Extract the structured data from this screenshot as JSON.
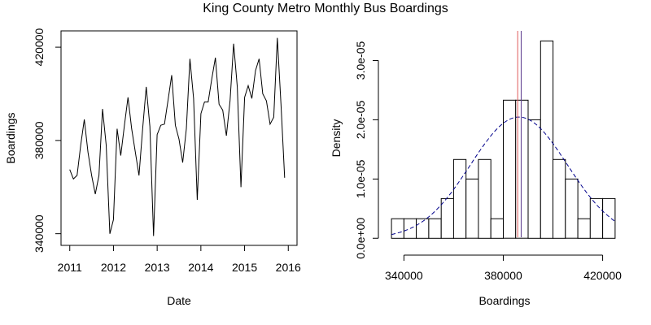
{
  "figure_title": "King County Metro Monthly Bus Boardings",
  "chart_data": [
    {
      "type": "line",
      "xlabel": "Date",
      "ylabel": "Boardings",
      "xlim": [
        2010.8,
        2016.2
      ],
      "ylim": [
        335000,
        427000
      ],
      "xticks": [
        2011,
        2012,
        2013,
        2014,
        2015,
        2016
      ],
      "xtick_labels": [
        "2011",
        "2012",
        "2013",
        "2014",
        "2015",
        "2016"
      ],
      "yticks": [
        340000,
        380000,
        420000
      ],
      "ytick_labels": [
        "340000",
        "380000",
        "420000"
      ],
      "grid": false,
      "line_color": "#000000",
      "x": [
        2011.0,
        2011.083,
        2011.167,
        2011.25,
        2011.333,
        2011.417,
        2011.5,
        2011.583,
        2011.667,
        2011.75,
        2011.833,
        2011.917,
        2012.0,
        2012.083,
        2012.167,
        2012.25,
        2012.333,
        2012.417,
        2012.5,
        2012.583,
        2012.667,
        2012.75,
        2012.833,
        2012.917,
        2013.0,
        2013.083,
        2013.167,
        2013.25,
        2013.333,
        2013.417,
        2013.5,
        2013.583,
        2013.667,
        2013.75,
        2013.833,
        2013.917,
        2014.0,
        2014.083,
        2014.167,
        2014.25,
        2014.333,
        2014.417,
        2014.5,
        2014.583,
        2014.667,
        2014.75,
        2014.833,
        2014.917,
        2015.0,
        2015.083,
        2015.167,
        2015.25,
        2015.333,
        2015.417,
        2015.5,
        2015.583,
        2015.667,
        2015.75,
        2015.833,
        2015.917
      ],
      "y": [
        367500,
        363500,
        365000,
        378000,
        389000,
        375000,
        365000,
        357000,
        365000,
        393500,
        378000,
        340000,
        346000,
        385000,
        373500,
        386500,
        398500,
        385000,
        375000,
        365000,
        385000,
        403000,
        386000,
        339000,
        382500,
        386500,
        387000,
        397500,
        408000,
        386500,
        380500,
        370500,
        385000,
        415000,
        398000,
        354500,
        391500,
        396500,
        396500,
        406500,
        415500,
        395500,
        393000,
        382000,
        397000,
        421500,
        403000,
        360000,
        398500,
        403500,
        398000,
        410000,
        415000,
        400000,
        397000,
        387000,
        390000,
        424000,
        395500,
        364000
      ]
    },
    {
      "type": "bar",
      "xlabel": "Boardings",
      "ylabel": "Density",
      "xlim": [
        333000,
        428000
      ],
      "ylim": [
        -1.2e-06,
        3.5e-05
      ],
      "xticks": [
        340000,
        380000,
        420000
      ],
      "xtick_labels": [
        "340000",
        "380000",
        "420000"
      ],
      "yticks": [
        0,
        1e-05,
        2e-05,
        3e-05
      ],
      "ytick_labels": [
        "0.0e+00",
        "1.0e-05",
        "2.0e-05",
        "3.0e-05"
      ],
      "grid": false,
      "bin_width": 5000,
      "bin_edges": [
        335000,
        340000,
        345000,
        350000,
        355000,
        360000,
        365000,
        370000,
        375000,
        380000,
        385000,
        390000,
        395000,
        400000,
        405000,
        410000,
        415000,
        420000,
        425000
      ],
      "density": [
        3.3e-06,
        3.3e-06,
        3.3e-06,
        3.3e-06,
        6.7e-06,
        1.33e-05,
        1e-05,
        1.33e-05,
        3.3e-06,
        2.33e-05,
        2.33e-05,
        2e-05,
        3.33e-05,
        1.33e-05,
        1e-05,
        3.3e-06,
        6.7e-06,
        6.7e-06
      ],
      "normal_curve": {
        "mean": 386300,
        "sd": 19500,
        "style": "dashed",
        "color": "#00008b"
      },
      "reference_lines": [
        {
          "value": 385800,
          "color": "#e05a5a"
        },
        {
          "value": 387200,
          "color": "#5a3a8c"
        }
      ]
    }
  ]
}
